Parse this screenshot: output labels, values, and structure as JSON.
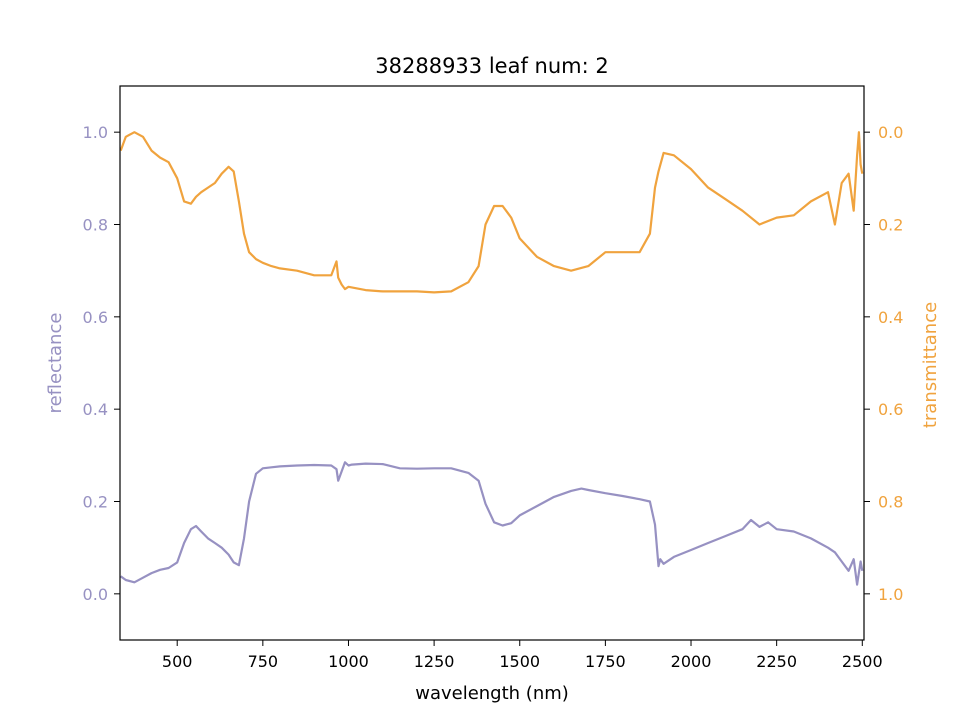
{
  "chart_data": {
    "type": "line",
    "title": "38288933 leaf num: 2",
    "xlabel": "wavelength (nm)",
    "ylabel_left": "reflectance",
    "ylabel_right": "transmittance",
    "xlim": [
      333,
      2505
    ],
    "ylim_left": [
      -0.1,
      1.1
    ],
    "ylim_right": [
      1.1,
      -0.1
    ],
    "right_axis_inverted": true,
    "x_ticks": [
      "500",
      "750",
      "1000",
      "1250",
      "1500",
      "1750",
      "2000",
      "2250",
      "2500"
    ],
    "y_ticks_left": [
      "0.0",
      "0.2",
      "0.4",
      "0.6",
      "0.8",
      "1.0"
    ],
    "y_ticks_right": [
      "0.0",
      "0.2",
      "0.4",
      "0.6",
      "0.8",
      "1.0"
    ],
    "grid": false,
    "colors": {
      "reflectance": "#9791c2",
      "transmittance": "#f0a33e"
    },
    "series": [
      {
        "key": "reflectance",
        "axis": "left",
        "x": [
          335,
          350,
          375,
          400,
          425,
          450,
          475,
          500,
          520,
          540,
          555,
          570,
          590,
          610,
          630,
          650,
          665,
          680,
          695,
          710,
          730,
          750,
          775,
          800,
          850,
          900,
          950,
          965,
          970,
          980,
          990,
          1000,
          1010,
          1050,
          1100,
          1150,
          1200,
          1250,
          1300,
          1350,
          1380,
          1400,
          1425,
          1450,
          1475,
          1500,
          1550,
          1600,
          1650,
          1680,
          1700,
          1750,
          1800,
          1850,
          1880,
          1895,
          1905,
          1910,
          1920,
          1950,
          2000,
          2050,
          2100,
          2150,
          2175,
          2200,
          2225,
          2250,
          2300,
          2350,
          2400,
          2420,
          2440,
          2460,
          2475,
          2485,
          2495,
          2500
        ],
        "y": [
          0.038,
          0.03,
          0.025,
          0.035,
          0.045,
          0.052,
          0.056,
          0.068,
          0.11,
          0.14,
          0.147,
          0.135,
          0.12,
          0.11,
          0.1,
          0.085,
          0.068,
          0.062,
          0.12,
          0.2,
          0.26,
          0.272,
          0.274,
          0.276,
          0.278,
          0.279,
          0.278,
          0.27,
          0.245,
          0.265,
          0.285,
          0.278,
          0.28,
          0.282,
          0.281,
          0.272,
          0.271,
          0.272,
          0.272,
          0.262,
          0.245,
          0.195,
          0.155,
          0.148,
          0.153,
          0.17,
          0.19,
          0.21,
          0.223,
          0.228,
          0.225,
          0.218,
          0.212,
          0.205,
          0.2,
          0.15,
          0.06,
          0.075,
          0.065,
          0.08,
          0.095,
          0.11,
          0.125,
          0.14,
          0.16,
          0.145,
          0.155,
          0.14,
          0.135,
          0.12,
          0.1,
          0.09,
          0.07,
          0.05,
          0.075,
          0.02,
          0.07,
          0.05
        ]
      },
      {
        "key": "transmittance",
        "axis": "right",
        "x": [
          335,
          350,
          375,
          400,
          425,
          450,
          475,
          500,
          520,
          540,
          555,
          570,
          590,
          610,
          630,
          650,
          665,
          680,
          695,
          710,
          730,
          750,
          775,
          800,
          850,
          900,
          950,
          965,
          970,
          980,
          990,
          1000,
          1050,
          1100,
          1150,
          1200,
          1250,
          1300,
          1350,
          1380,
          1400,
          1425,
          1450,
          1475,
          1500,
          1550,
          1600,
          1650,
          1700,
          1750,
          1800,
          1850,
          1880,
          1895,
          1905,
          1920,
          1950,
          2000,
          2050,
          2100,
          2150,
          2200,
          2250,
          2300,
          2350,
          2400,
          2420,
          2440,
          2460,
          2475,
          2485,
          2490,
          2495,
          2500
        ],
        "y": [
          0.04,
          0.01,
          0.0,
          0.01,
          0.04,
          0.055,
          0.065,
          0.1,
          0.15,
          0.155,
          0.14,
          0.13,
          0.12,
          0.11,
          0.09,
          0.075,
          0.085,
          0.15,
          0.22,
          0.26,
          0.275,
          0.283,
          0.29,
          0.295,
          0.3,
          0.31,
          0.31,
          0.28,
          0.315,
          0.33,
          0.34,
          0.335,
          0.342,
          0.345,
          0.345,
          0.345,
          0.347,
          0.345,
          0.325,
          0.29,
          0.2,
          0.16,
          0.16,
          0.185,
          0.23,
          0.27,
          0.29,
          0.3,
          0.29,
          0.26,
          0.26,
          0.26,
          0.22,
          0.12,
          0.085,
          0.045,
          0.05,
          0.08,
          0.12,
          0.145,
          0.17,
          0.2,
          0.185,
          0.18,
          0.15,
          0.13,
          0.2,
          0.11,
          0.09,
          0.17,
          0.05,
          0.0,
          0.07,
          0.09
        ]
      }
    ]
  }
}
